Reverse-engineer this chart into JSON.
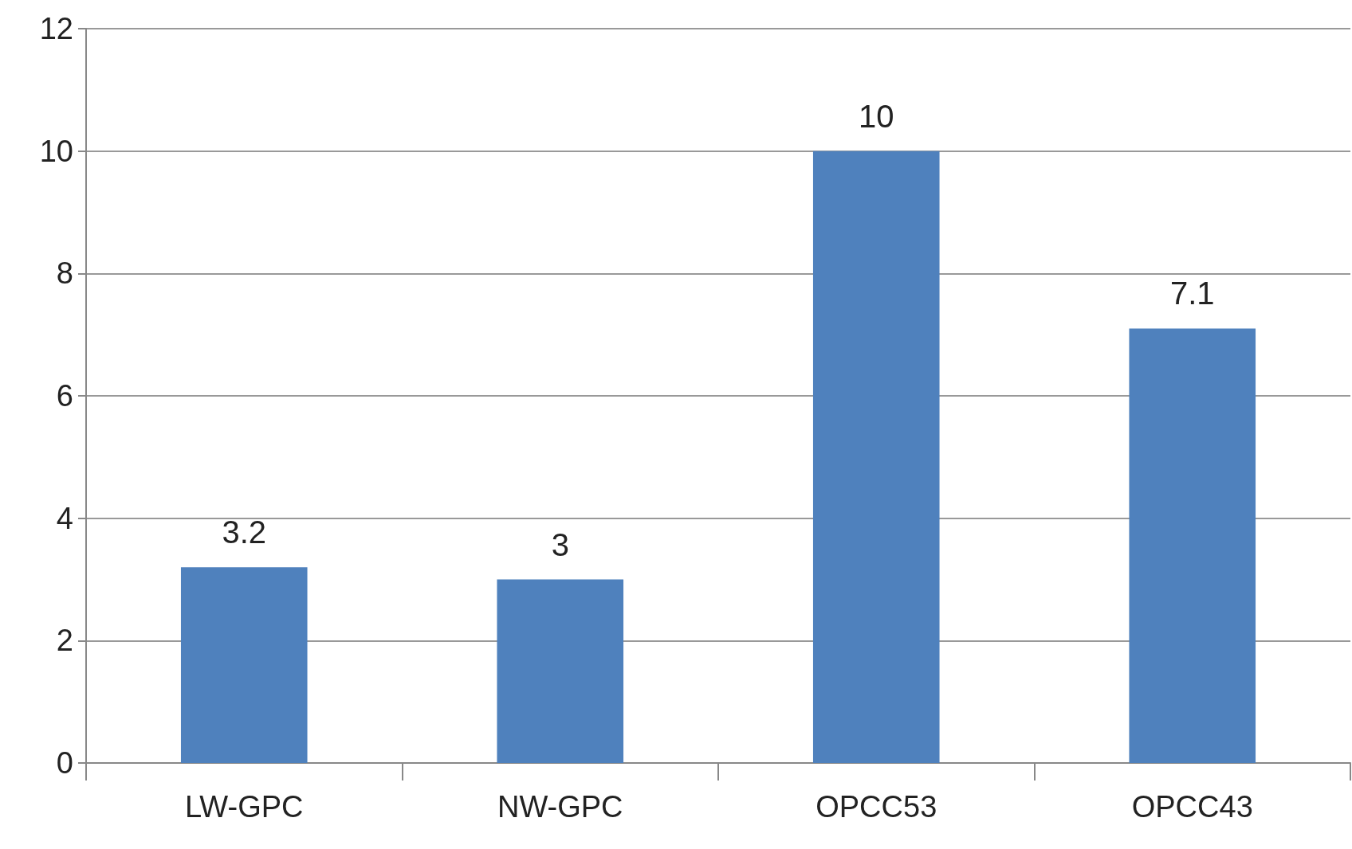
{
  "chart_data": {
    "type": "bar",
    "categories": [
      "LW-GPC",
      "NW-GPC",
      "OPCC53",
      "OPCC43"
    ],
    "values": [
      3.2,
      3,
      10,
      7.1
    ],
    "color": "#4f81bd",
    "ylim": [
      0,
      12
    ],
    "yticks": [
      0,
      2,
      4,
      6,
      8,
      10,
      12
    ],
    "grid": "y",
    "data_labels": true
  }
}
